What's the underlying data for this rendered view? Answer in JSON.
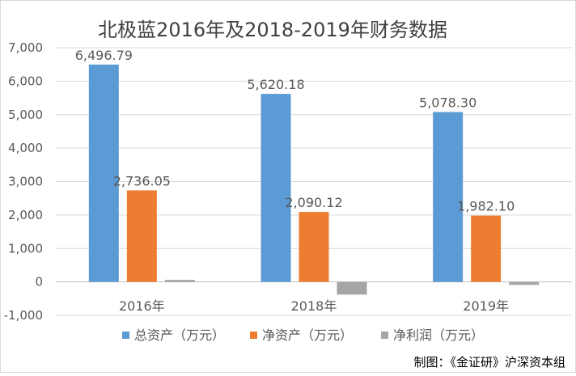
{
  "credit": "制图：《金证研》沪深资本组",
  "colors": {
    "total_assets": "#5b9bd5",
    "net_assets": "#ed7d31",
    "net_profit": "#a5a5a5",
    "text": "#595959",
    "title": "#404040",
    "grid": "#d9d9d9"
  },
  "chart_data": {
    "type": "bar",
    "title": "北极蓝2016年及2018-2019年财务数据",
    "xlabel": "",
    "ylabel": "",
    "categories": [
      "2016年",
      "2018年",
      "2019年"
    ],
    "ylim": [
      -1000,
      7000
    ],
    "yticks": [
      -1000,
      0,
      1000,
      2000,
      3000,
      4000,
      5000,
      6000,
      7000
    ],
    "ytick_labels": [
      "-1,000",
      "0",
      "1,000",
      "2,000",
      "3,000",
      "4,000",
      "5,000",
      "6,000",
      "7,000"
    ],
    "grid": true,
    "legend_position": "bottom",
    "series": [
      {
        "name": "总资产（万元）",
        "values": [
          6496.79,
          5620.18,
          5078.3
        ],
        "labels": [
          "6,496.79",
          "5,620.18",
          "5,078.30"
        ]
      },
      {
        "name": "净资产（万元）",
        "values": [
          2736.05,
          2090.12,
          1982.1
        ],
        "labels": [
          "2,736.05",
          "2,090.12",
          "1,982.10"
        ]
      },
      {
        "name": "净利润（万元）",
        "values": [
          60,
          -380,
          -90
        ],
        "labels": []
      }
    ]
  }
}
